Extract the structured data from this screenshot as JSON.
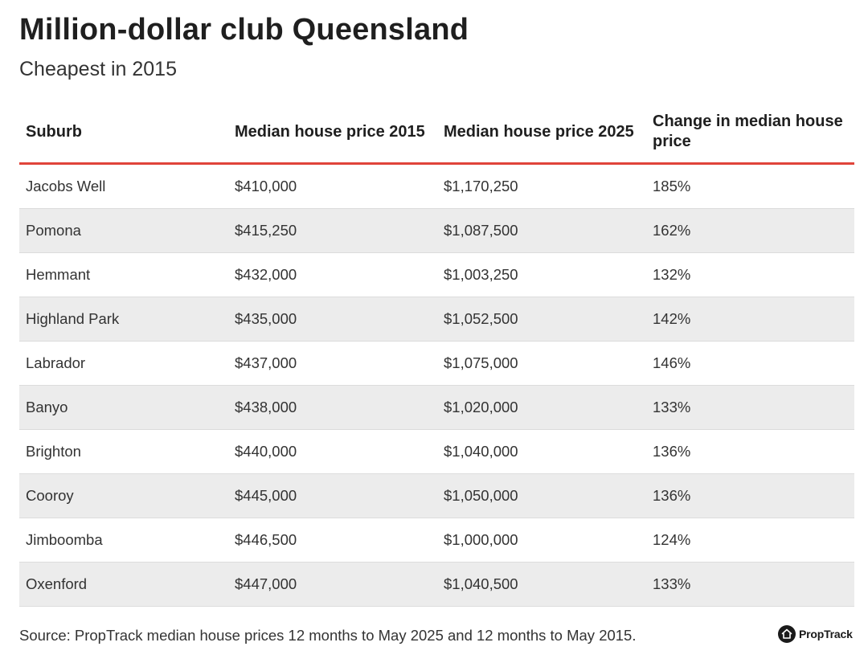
{
  "title": "Million-dollar club Queensland",
  "subtitle": "Cheapest in 2015",
  "source": "Source: PropTrack median house prices 12 months to May 2025 and 12 months to May 2015.",
  "brand": {
    "name": "PropTrack",
    "icon": "proptrack-house-logo-icon"
  },
  "colors": {
    "header_rule": "#e0443a",
    "row_stripe": "#ececec"
  },
  "chart_data": {
    "type": "table",
    "columns": [
      "Suburb",
      "Median house price 2015",
      "Median house price 2025",
      "Change in median house price"
    ],
    "rows": [
      [
        "Jacobs Well",
        "$410,000",
        "$1,170,250",
        "185%"
      ],
      [
        "Pomona",
        "$415,250",
        "$1,087,500",
        "162%"
      ],
      [
        "Hemmant",
        "$432,000",
        "$1,003,250",
        "132%"
      ],
      [
        "Highland Park",
        "$435,000",
        "$1,052,500",
        "142%"
      ],
      [
        "Labrador",
        "$437,000",
        "$1,075,000",
        "146%"
      ],
      [
        "Banyo",
        "$438,000",
        "$1,020,000",
        "133%"
      ],
      [
        "Brighton",
        "$440,000",
        "$1,040,000",
        "136%"
      ],
      [
        "Cooroy",
        "$445,000",
        "$1,050,000",
        "136%"
      ],
      [
        "Jimboomba",
        "$446,500",
        "$1,000,000",
        "124%"
      ],
      [
        "Oxenford",
        "$447,000",
        "$1,040,500",
        "133%"
      ]
    ]
  }
}
